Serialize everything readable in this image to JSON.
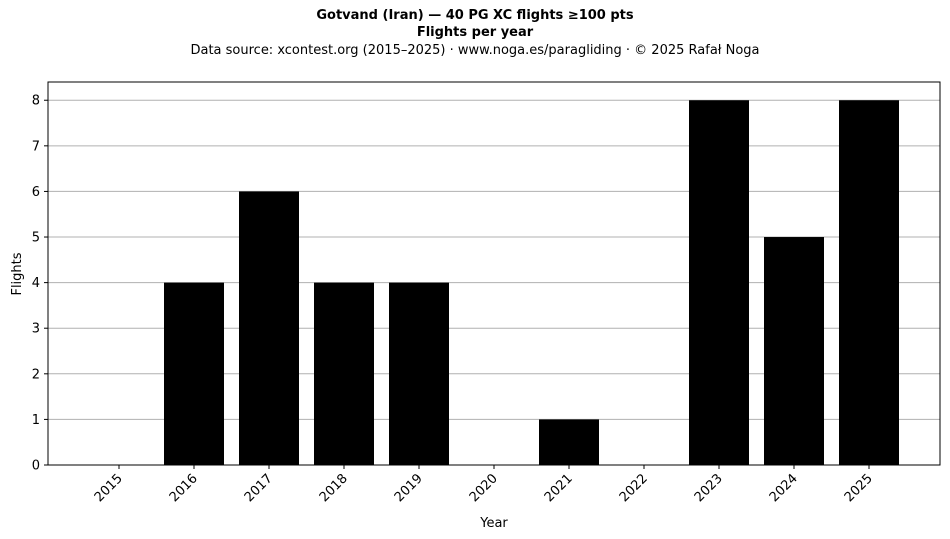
{
  "chart_data": {
    "type": "bar",
    "title": "Gotvand (Iran)  —  40 PG XC flights ≥100 pts",
    "subtitle": "Flights per year",
    "source_line": "Data source: xcontest.org (2015–2025)  ·  www.noga.es/paragliding  ·  © 2025 Rafał Noga",
    "xlabel": "Year",
    "ylabel": "Flights",
    "categories": [
      "2015",
      "2016",
      "2017",
      "2018",
      "2019",
      "2020",
      "2021",
      "2022",
      "2023",
      "2024",
      "2025"
    ],
    "values": [
      0,
      4,
      6,
      4,
      4,
      0,
      1,
      0,
      8,
      5,
      8
    ],
    "yticks": [
      "0",
      "1",
      "2",
      "3",
      "4",
      "5",
      "6",
      "7",
      "8"
    ],
    "ylim": [
      0,
      8.4
    ],
    "grid": "horizontal",
    "bar_color": "#000000",
    "grid_color": "#b0b0b0"
  }
}
